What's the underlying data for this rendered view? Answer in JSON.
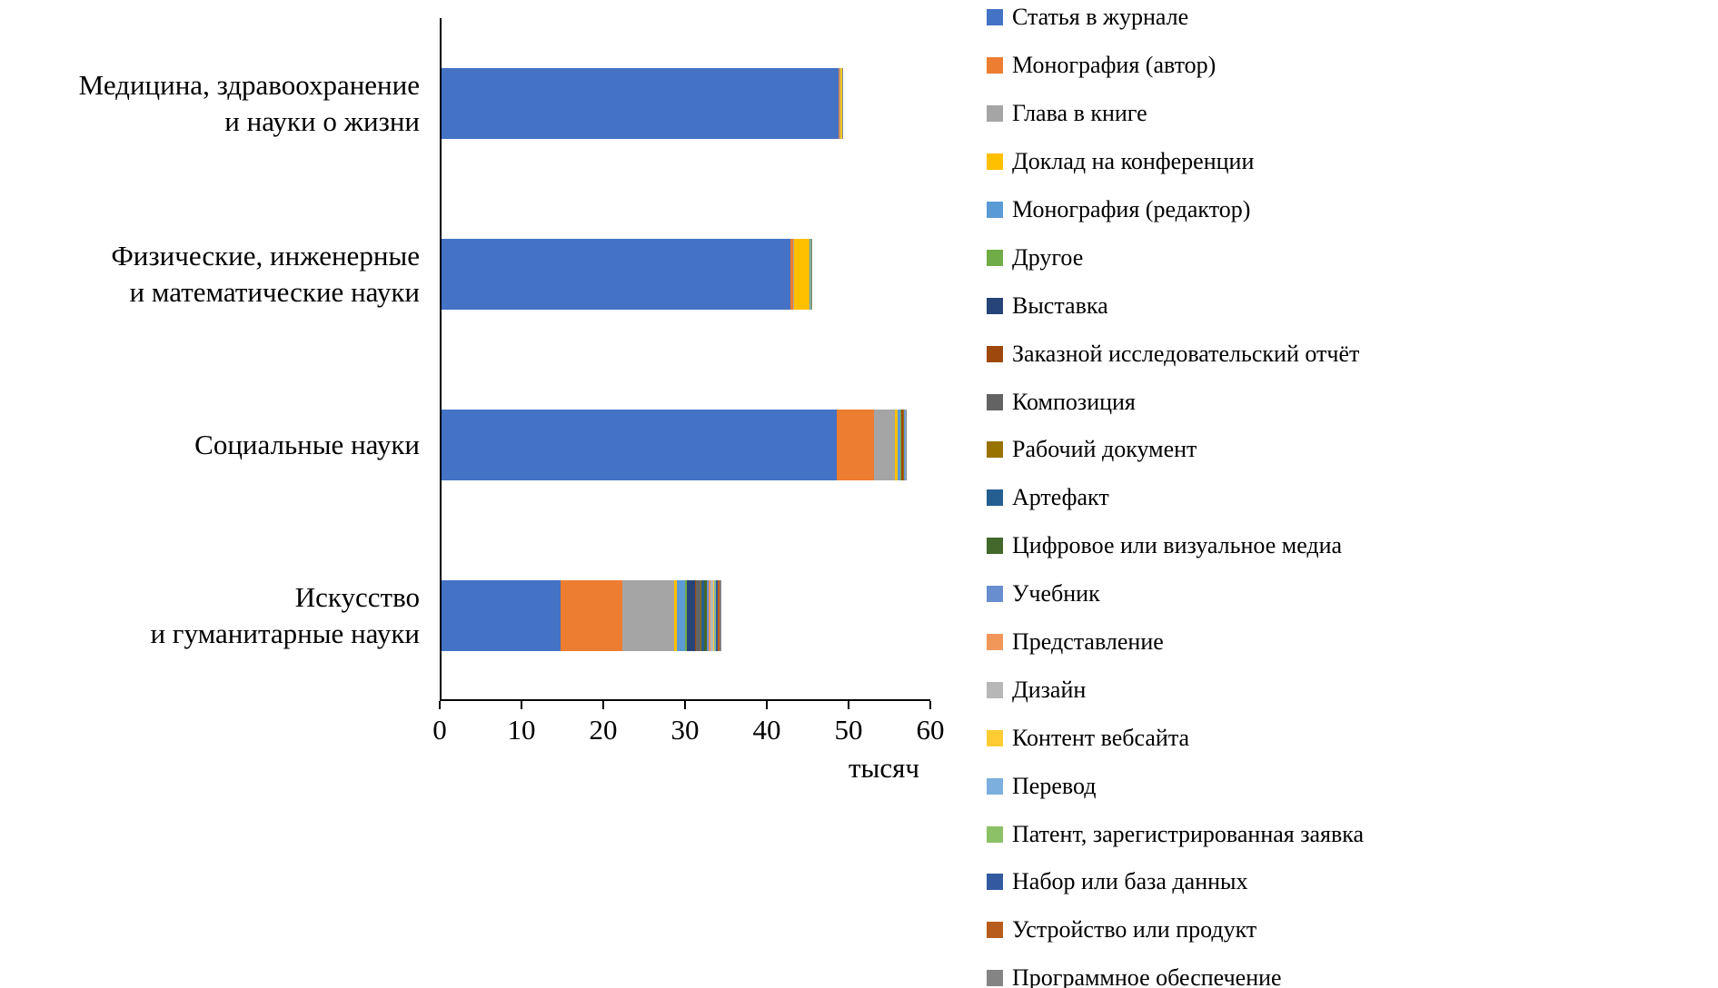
{
  "chart_data": {
    "type": "bar",
    "orientation": "horizontal",
    "stacked": true,
    "title": "",
    "xlabel_unit": "тысяч",
    "xlim": [
      0,
      60
    ],
    "x_ticks": [
      0,
      10,
      20,
      30,
      40,
      50,
      60
    ],
    "grid": false,
    "legend_position": "right",
    "categories": [
      {
        "lines": [
          "Медицина, здравоохранение",
          "и науки о жизни"
        ]
      },
      {
        "lines": [
          "Физические, инженерные",
          "и математические науки"
        ]
      },
      {
        "lines": [
          "Социальные науки"
        ]
      },
      {
        "lines": [
          "Искусство",
          "и гуманитарные науки"
        ]
      }
    ],
    "series": [
      {
        "name": "Статья в журнале",
        "color": "#4472C4",
        "values": [
          48.5,
          42.7,
          48.3,
          14.6
        ]
      },
      {
        "name": "Монография (автор)",
        "color": "#ED7D31",
        "values": [
          0.2,
          0.3,
          4.6,
          7.5
        ]
      },
      {
        "name": "Глава в книге",
        "color": "#A5A5A5",
        "values": [
          0.1,
          0.15,
          2.6,
          6.3
        ]
      },
      {
        "name": "Доклад на конференции",
        "color": "#FFC000",
        "values": [
          0.05,
          1.9,
          0.25,
          0.35
        ]
      },
      {
        "name": "Монография (редактор)",
        "color": "#5B9BD5",
        "values": [
          0.05,
          0.05,
          0.35,
          1.0
        ]
      },
      {
        "name": "Другое",
        "color": "#70AD47",
        "values": [
          0,
          0,
          0.1,
          0.3
        ]
      },
      {
        "name": "Выставка",
        "color": "#264478",
        "values": [
          0,
          0,
          0.05,
          0.9
        ]
      },
      {
        "name": "Заказной исследовательский отчёт",
        "color": "#9E480E",
        "values": [
          0.02,
          0.02,
          0.15,
          0.2
        ]
      },
      {
        "name": "Композиция",
        "color": "#636363",
        "values": [
          0,
          0,
          0.05,
          0.5
        ]
      },
      {
        "name": "Рабочий документ",
        "color": "#997300",
        "values": [
          0.01,
          0.02,
          0.1,
          0.15
        ]
      },
      {
        "name": "Артефакт",
        "color": "#255E91",
        "values": [
          0,
          0,
          0.02,
          0.3
        ]
      },
      {
        "name": "Цифровое или визуальное медиа",
        "color": "#43682B",
        "values": [
          0,
          0,
          0.02,
          0.4
        ]
      },
      {
        "name": "Учебник",
        "color": "#698ED0",
        "values": [
          0.02,
          0.01,
          0.05,
          0.2
        ]
      },
      {
        "name": "Представление",
        "color": "#F1975A",
        "values": [
          0,
          0,
          0.02,
          0.25
        ]
      },
      {
        "name": "Дизайн",
        "color": "#B7B7B7",
        "values": [
          0,
          0.01,
          0.02,
          0.3
        ]
      },
      {
        "name": "Контент вебсайта",
        "color": "#FFCD33",
        "values": [
          0.01,
          0.01,
          0.05,
          0.1
        ]
      },
      {
        "name": "Перевод",
        "color": "#7CAFDD",
        "values": [
          0,
          0,
          0.02,
          0.15
        ]
      },
      {
        "name": "Патент, зарегистрированная заявка",
        "color": "#8CC168",
        "values": [
          0,
          0.02,
          0.01,
          0.1
        ]
      },
      {
        "name": "Набор или база данных",
        "color": "#335AA1",
        "values": [
          0.01,
          0.02,
          0.02,
          0.2
        ]
      },
      {
        "name": "Устройство или продукт",
        "color": "#B85C1C",
        "values": [
          0.01,
          0.02,
          0.01,
          0.2
        ]
      },
      {
        "name": "Программное обеспечение",
        "color": "#848484",
        "values": [
          0.02,
          0.03,
          0.02,
          0.2
        ]
      }
    ]
  },
  "layout_text": {
    "x_unit": "тысяч"
  }
}
